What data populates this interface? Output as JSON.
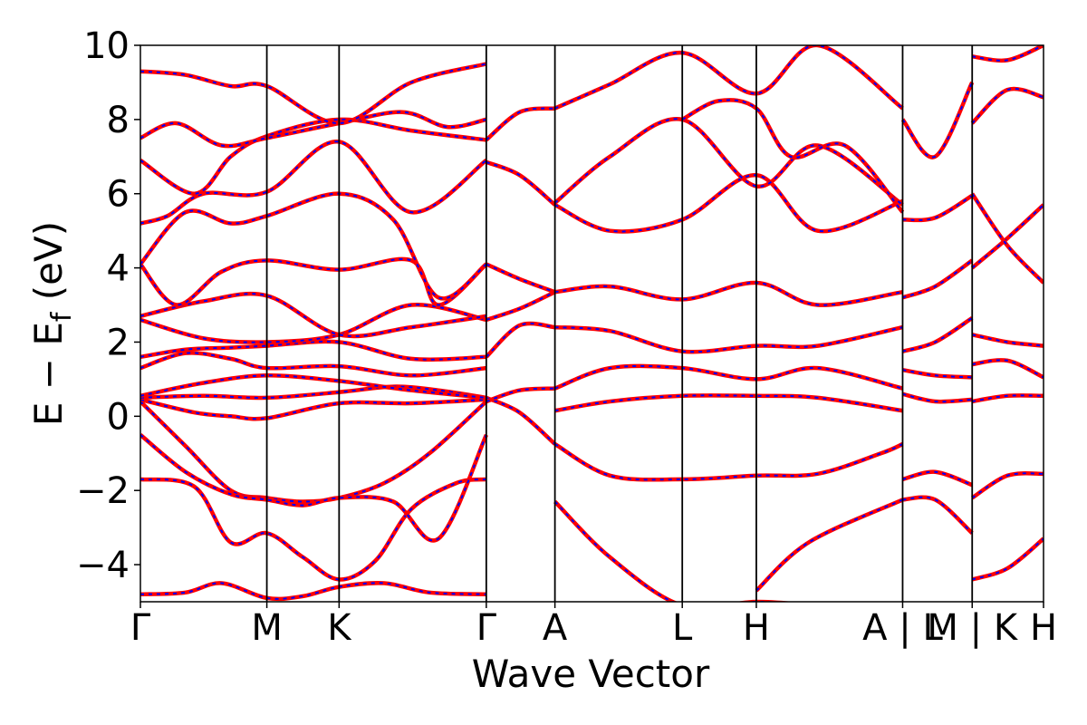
{
  "chart_data": {
    "type": "line",
    "title": "",
    "xlabel": "Wave Vector",
    "ylabel_parts": [
      "E − E",
      "f",
      " (eV)"
    ],
    "ylim": [
      -5,
      10
    ],
    "yticks": [
      -4,
      -2,
      0,
      2,
      4,
      6,
      8,
      10
    ],
    "ytick_labels": [
      "−4",
      "−2",
      "0",
      "2",
      "4",
      "6",
      "8",
      "10"
    ],
    "xlim": [
      0,
      1
    ],
    "kpoint_labels": [
      "Γ",
      "M",
      "K",
      "Γ",
      "A",
      "L",
      "H",
      "A | L",
      "M | K",
      "H"
    ],
    "kpoint_positions": [
      0.0,
      0.14,
      0.22,
      0.383,
      0.459,
      0.6,
      0.682,
      0.844,
      0.921,
      1.0
    ],
    "grid": false,
    "legend": "none",
    "colors": {
      "band_primary": "#ff0000",
      "band_dashed": "#0000ff",
      "kpath_lines": "#000000"
    },
    "series": [
      {
        "x": [
          0.0,
          0.05,
          0.09,
          0.14,
          0.18,
          0.22,
          0.27,
          0.32,
          0.383
        ],
        "values": [
          -4.8,
          -4.75,
          -4.5,
          -4.9,
          -4.85,
          -4.6,
          -4.5,
          -4.75,
          -4.8
        ]
      },
      {
        "x": [
          0.0,
          0.06,
          0.1,
          0.14,
          0.18,
          0.22,
          0.26,
          0.3,
          0.35,
          0.383
        ],
        "values": [
          -1.7,
          -1.9,
          -3.4,
          -3.15,
          -3.8,
          -4.4,
          -3.9,
          -2.5,
          -1.8,
          -1.7
        ]
      },
      {
        "x": [
          0.0,
          0.05,
          0.1,
          0.14,
          0.18,
          0.22,
          0.27,
          0.32,
          0.383
        ],
        "values": [
          0.4,
          -0.8,
          -2.0,
          -2.2,
          -2.3,
          -2.2,
          -1.8,
          -1.0,
          0.4
        ]
      },
      {
        "x": [
          0.0,
          0.05,
          0.1,
          0.14,
          0.18,
          0.22,
          0.28,
          0.33,
          0.383
        ],
        "values": [
          -0.5,
          -1.5,
          -2.1,
          -2.25,
          -2.4,
          -2.2,
          -2.3,
          -3.3,
          -0.5
        ]
      },
      {
        "x": [
          0.0,
          0.06,
          0.1,
          0.14,
          0.22,
          0.3,
          0.383
        ],
        "values": [
          0.45,
          0.1,
          0.0,
          -0.05,
          0.35,
          0.35,
          0.45
        ]
      },
      {
        "x": [
          0.0,
          0.07,
          0.14,
          0.22,
          0.28,
          0.33,
          0.383
        ],
        "values": [
          0.5,
          0.55,
          0.5,
          0.65,
          0.8,
          0.7,
          0.5
        ]
      },
      {
        "x": [
          0.0,
          0.07,
          0.14,
          0.22,
          0.3,
          0.383
        ],
        "values": [
          0.55,
          0.9,
          1.1,
          0.95,
          0.7,
          0.5
        ]
      },
      {
        "x": [
          0.0,
          0.05,
          0.1,
          0.14,
          0.22,
          0.3,
          0.383
        ],
        "values": [
          1.3,
          1.7,
          1.55,
          1.3,
          1.35,
          1.1,
          1.3
        ]
      },
      {
        "x": [
          0.0,
          0.05,
          0.1,
          0.14,
          0.22,
          0.3,
          0.383
        ],
        "values": [
          1.6,
          1.8,
          1.85,
          1.9,
          2.0,
          1.55,
          1.6
        ]
      },
      {
        "x": [
          0.0,
          0.07,
          0.14,
          0.22,
          0.3,
          0.383
        ],
        "values": [
          2.6,
          2.1,
          2.0,
          2.2,
          3.0,
          2.6
        ]
      },
      {
        "x": [
          0.0,
          0.07,
          0.14,
          0.22,
          0.3,
          0.383
        ],
        "values": [
          2.7,
          3.1,
          3.25,
          2.2,
          2.4,
          2.7
        ]
      },
      {
        "x": [
          0.0,
          0.04,
          0.09,
          0.14,
          0.22,
          0.3,
          0.33,
          0.383
        ],
        "values": [
          4.1,
          3.0,
          3.9,
          4.2,
          3.95,
          4.2,
          3.0,
          4.1
        ]
      },
      {
        "x": [
          0.0,
          0.05,
          0.1,
          0.14,
          0.22,
          0.28,
          0.33,
          0.383
        ],
        "values": [
          4.1,
          5.5,
          5.2,
          5.4,
          6.0,
          5.3,
          3.2,
          4.1
        ]
      },
      {
        "x": [
          0.0,
          0.03,
          0.07,
          0.14,
          0.22,
          0.3,
          0.383
        ],
        "values": [
          5.2,
          5.4,
          6.0,
          6.05,
          7.4,
          5.5,
          6.9
        ]
      },
      {
        "x": [
          0.0,
          0.06,
          0.1,
          0.14,
          0.22,
          0.3,
          0.383
        ],
        "values": [
          6.9,
          6.0,
          7.0,
          7.55,
          8.0,
          7.7,
          7.45
        ]
      },
      {
        "x": [
          0.0,
          0.04,
          0.09,
          0.14,
          0.22,
          0.29,
          0.34,
          0.383
        ],
        "values": [
          7.5,
          7.9,
          7.3,
          7.5,
          7.9,
          8.2,
          7.8,
          8.0
        ]
      },
      {
        "x": [
          0.0,
          0.05,
          0.1,
          0.14,
          0.22,
          0.3,
          0.383
        ],
        "values": [
          9.3,
          9.2,
          8.9,
          8.9,
          7.9,
          9.0,
          9.5
        ]
      },
      {
        "x": [
          0.383,
          0.42,
          0.459
        ],
        "values": [
          0.5,
          0.1,
          -0.75
        ]
      },
      {
        "x": [
          0.383,
          0.42,
          0.459
        ],
        "values": [
          0.4,
          0.7,
          0.75
        ]
      },
      {
        "x": [
          0.383,
          0.42,
          0.459
        ],
        "values": [
          1.6,
          2.45,
          2.4
        ]
      },
      {
        "x": [
          0.383,
          0.42,
          0.459
        ],
        "values": [
          2.6,
          2.9,
          3.35
        ]
      },
      {
        "x": [
          0.383,
          0.42,
          0.459
        ],
        "values": [
          4.1,
          3.7,
          3.35
        ]
      },
      {
        "x": [
          0.383,
          0.42,
          0.459
        ],
        "values": [
          6.85,
          6.5,
          5.7
        ]
      },
      {
        "x": [
          0.383,
          0.42,
          0.459
        ],
        "values": [
          7.45,
          8.2,
          8.3
        ]
      },
      {
        "x": [
          0.459,
          0.52,
          0.6,
          0.682,
          0.75,
          0.82,
          0.844
        ],
        "values": [
          -0.75,
          -1.6,
          -1.7,
          -1.6,
          -1.55,
          -1.0,
          -0.75
        ]
      },
      {
        "x": [
          0.459,
          0.52,
          0.6,
          0.682,
          0.75,
          0.844
        ],
        "values": [
          -2.3,
          -3.8,
          -5.1,
          -5.0,
          -5.1,
          -5.2
        ]
      },
      {
        "x": [
          0.459,
          0.52,
          0.6,
          0.682,
          0.75,
          0.844
        ],
        "values": [
          0.15,
          0.4,
          0.55,
          0.55,
          0.5,
          0.15
        ]
      },
      {
        "x": [
          0.459,
          0.52,
          0.6,
          0.682,
          0.75,
          0.844
        ],
        "values": [
          0.75,
          1.3,
          1.3,
          1.0,
          1.3,
          0.75
        ]
      },
      {
        "x": [
          0.459,
          0.52,
          0.6,
          0.682,
          0.75,
          0.844
        ],
        "values": [
          2.4,
          2.3,
          1.75,
          1.9,
          1.9,
          2.4
        ]
      },
      {
        "x": [
          0.459,
          0.52,
          0.6,
          0.682,
          0.75,
          0.844
        ],
        "values": [
          3.35,
          3.5,
          3.15,
          3.6,
          3.0,
          3.35
        ]
      },
      {
        "x": [
          0.459,
          0.52,
          0.6,
          0.682,
          0.75,
          0.844
        ],
        "values": [
          5.7,
          5.0,
          5.3,
          6.5,
          5.0,
          5.8
        ]
      },
      {
        "x": [
          0.459,
          0.52,
          0.6,
          0.682,
          0.75,
          0.844
        ],
        "values": [
          5.75,
          7.0,
          8.0,
          6.2,
          7.3,
          5.7
        ]
      },
      {
        "x": [
          0.459,
          0.52,
          0.6,
          0.682,
          0.75,
          0.844
        ],
        "values": [
          8.3,
          8.95,
          9.8,
          8.7,
          10.0,
          8.3
        ]
      },
      {
        "x": [
          0.6,
          0.64,
          0.682,
          0.72,
          0.78,
          0.844
        ],
        "values": [
          8.0,
          8.5,
          8.3,
          7.0,
          7.3,
          5.5
        ]
      },
      {
        "x": [
          0.682,
          0.74,
          0.844
        ],
        "values": [
          -4.7,
          -3.4,
          -2.25
        ]
      },
      {
        "x": [
          0.844,
          0.88,
          0.921
        ],
        "values": [
          -1.7,
          -1.5,
          -1.85
        ]
      },
      {
        "x": [
          0.844,
          0.88,
          0.921
        ],
        "values": [
          -2.25,
          -2.25,
          -3.15
        ]
      },
      {
        "x": [
          0.844,
          0.88,
          0.921
        ],
        "values": [
          0.6,
          0.4,
          0.45
        ]
      },
      {
        "x": [
          0.844,
          0.88,
          0.921
        ],
        "values": [
          1.25,
          1.1,
          1.05
        ]
      },
      {
        "x": [
          0.844,
          0.88,
          0.921
        ],
        "values": [
          1.75,
          2.0,
          2.65
        ]
      },
      {
        "x": [
          0.844,
          0.88,
          0.921
        ],
        "values": [
          3.2,
          3.5,
          4.2
        ]
      },
      {
        "x": [
          0.844,
          0.88,
          0.921
        ],
        "values": [
          5.3,
          5.35,
          5.95
        ]
      },
      {
        "x": [
          0.844,
          0.88,
          0.921
        ],
        "values": [
          8.0,
          7.0,
          9.0
        ]
      },
      {
        "x": [
          0.921,
          0.96,
          1.0
        ],
        "values": [
          -4.4,
          -4.1,
          -3.3
        ]
      },
      {
        "x": [
          0.921,
          0.96,
          1.0
        ],
        "values": [
          -2.2,
          -1.6,
          -1.55
        ]
      },
      {
        "x": [
          0.921,
          0.96,
          1.0
        ],
        "values": [
          0.4,
          0.55,
          0.55
        ]
      },
      {
        "x": [
          0.921,
          0.96,
          1.0
        ],
        "values": [
          1.4,
          1.5,
          1.05
        ]
      },
      {
        "x": [
          0.921,
          0.96,
          1.0
        ],
        "values": [
          2.2,
          2.0,
          1.9
        ]
      },
      {
        "x": [
          0.921,
          0.96,
          1.0
        ],
        "values": [
          4.0,
          4.8,
          5.7
        ]
      },
      {
        "x": [
          0.921,
          0.96,
          1.0
        ],
        "values": [
          6.0,
          4.6,
          3.6
        ]
      },
      {
        "x": [
          0.921,
          0.96,
          1.0
        ],
        "values": [
          7.9,
          8.8,
          8.6
        ]
      },
      {
        "x": [
          0.921,
          0.96,
          1.0
        ],
        "values": [
          9.7,
          9.6,
          10.0
        ]
      }
    ]
  }
}
